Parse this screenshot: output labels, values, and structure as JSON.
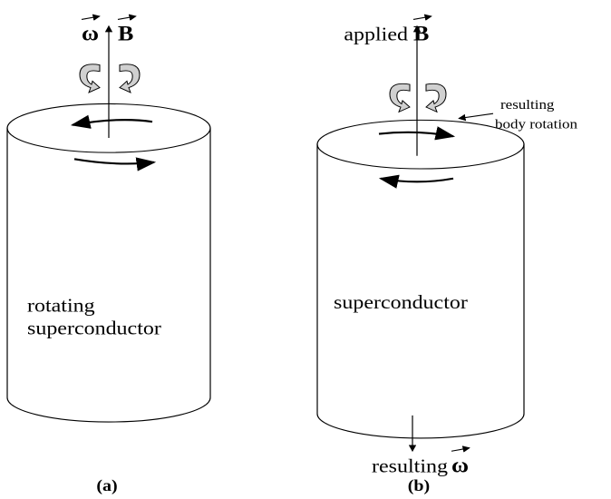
{
  "panels": [
    {
      "symbols": [
        "ω",
        "B"
      ],
      "body_lines": [
        "rotating",
        "superconductor"
      ],
      "caption": "(a)"
    },
    {
      "top_label": {
        "word": "applied",
        "symbol": "B"
      },
      "note_lines": [
        "resulting",
        "body rotation"
      ],
      "body_lines": [
        "superconductor"
      ],
      "bottom_label": {
        "word": "resulting",
        "symbol": "ω"
      },
      "caption": "(b)"
    }
  ]
}
